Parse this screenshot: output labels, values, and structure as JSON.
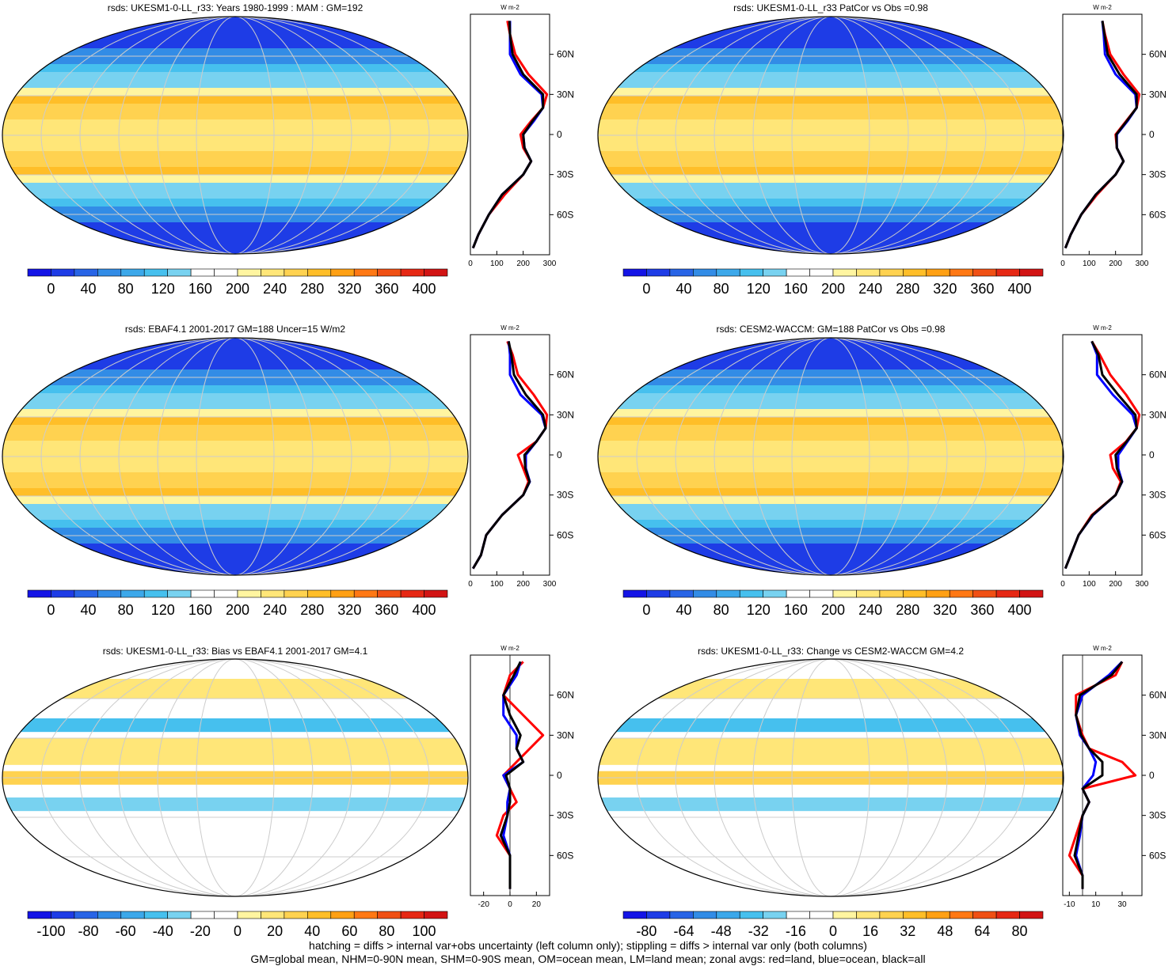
{
  "panels": [
    {
      "title": "rsds: UKESM1-0-LL_r33: Years 1980-1999 : MAM : GM=192",
      "kind": "abs",
      "cbar_labels": [
        "0",
        "40",
        "80",
        "120",
        "160",
        "200",
        "240",
        "280",
        "320",
        "360",
        "400"
      ],
      "zonal_xticks": [
        "0",
        "100",
        "200",
        "300"
      ],
      "zonal_unit": "W m-2",
      "lat_labels": [
        "60N",
        "30N",
        "0",
        "30S",
        "60S"
      ]
    },
    {
      "title": "rsds: UKESM1-0-LL_r33 PatCor vs Obs =0.98",
      "kind": "abs",
      "cbar_labels": [
        "0",
        "40",
        "80",
        "120",
        "160",
        "200",
        "240",
        "280",
        "320",
        "360",
        "400"
      ],
      "zonal_xticks": [
        "0",
        "100",
        "200",
        "300"
      ],
      "zonal_unit": "W m-2",
      "lat_labels": [
        "60N",
        "30N",
        "0",
        "30S",
        "60S"
      ]
    },
    {
      "title": "rsds: EBAF4.1 2001-2017 GM=188 Uncer=15 W/m2",
      "kind": "abs",
      "cbar_labels": [
        "0",
        "40",
        "80",
        "120",
        "160",
        "200",
        "240",
        "280",
        "320",
        "360",
        "400"
      ],
      "zonal_xticks": [
        "0",
        "100",
        "200",
        "300"
      ],
      "zonal_unit": "W m-2",
      "lat_labels": [
        "60N",
        "30N",
        "0",
        "30S",
        "60S"
      ]
    },
    {
      "title": "rsds: CESM2-WACCM: GM=188 PatCor vs Obs =0.98",
      "kind": "abs",
      "cbar_labels": [
        "0",
        "40",
        "80",
        "120",
        "160",
        "200",
        "240",
        "280",
        "320",
        "360",
        "400"
      ],
      "zonal_xticks": [
        "0",
        "100",
        "200",
        "300"
      ],
      "zonal_unit": "W m-2",
      "lat_labels": [
        "60N",
        "30N",
        "0",
        "30S",
        "60S"
      ]
    },
    {
      "title": "rsds: UKESM1-0-LL_r33: Bias vs EBAF4.1 2001-2017 GM=4.1",
      "kind": "diff",
      "cbar_labels": [
        "-100",
        "-80",
        "-60",
        "-40",
        "-20",
        "0",
        "20",
        "40",
        "60",
        "80",
        "100"
      ],
      "zonal_xticks": [
        "-20",
        "0",
        "20"
      ],
      "zonal_unit": "W m-2",
      "lat_labels": [
        "60N",
        "30N",
        "0",
        "30S",
        "60S"
      ]
    },
    {
      "title": "rsds: UKESM1-0-LL_r33: Change vs CESM2-WACCM GM=4.2",
      "kind": "diff",
      "cbar_labels": [
        "-80",
        "-64",
        "-48",
        "-32",
        "-16",
        "0",
        "16",
        "32",
        "48",
        "64",
        "80"
      ],
      "zonal_xticks": [
        "-10",
        "10",
        "30"
      ],
      "zonal_unit": "W m-2",
      "lat_labels": [
        "60N",
        "30N",
        "0",
        "30S",
        "60S"
      ]
    }
  ],
  "colors": {
    "abs_scale": [
      "#1414e6",
      "#1e3ce6",
      "#2864e6",
      "#328ce6",
      "#3ca8ea",
      "#46c0ee",
      "#78d2f0",
      "#ffffff",
      "#ffffff",
      "#fff5a0",
      "#ffe678",
      "#ffd250",
      "#ffbe28",
      "#ffa014",
      "#ff7814",
      "#f05014",
      "#e62814",
      "#d21414"
    ],
    "diff_scale": [
      "#1414e6",
      "#1e3ce6",
      "#2864e6",
      "#328ce6",
      "#3ca8ea",
      "#46c0ee",
      "#78d2f0",
      "#ffffff",
      "#ffffff",
      "#fff5a0",
      "#ffe678",
      "#ffd250",
      "#ffbe28",
      "#ffa014",
      "#ff7814",
      "#f05014",
      "#e62814",
      "#d21414"
    ],
    "land_line": "#ff0000",
    "ocean_line": "#0000ff",
    "all_line": "#000000"
  },
  "chart_data": {
    "type": "heatmap",
    "variable": "rsds",
    "lat_ticks": [
      "60N",
      "30N",
      "0",
      "30S",
      "60S"
    ],
    "zonal_mean_profiles": [
      {
        "panel": 1,
        "lat": [
          85,
          75,
          60,
          45,
          30,
          20,
          10,
          0,
          -10,
          -20,
          -30,
          -45,
          -60,
          -75,
          -85
        ],
        "land": [
          140,
          150,
          170,
          220,
          290,
          275,
          230,
          190,
          200,
          230,
          200,
          130,
          70,
          30,
          10
        ],
        "ocean": [
          150,
          150,
          150,
          190,
          270,
          275,
          240,
          200,
          205,
          230,
          200,
          120,
          70,
          30,
          10
        ],
        "all": [
          148,
          150,
          160,
          200,
          275,
          275,
          235,
          200,
          205,
          230,
          200,
          120,
          70,
          30,
          10
        ]
      },
      {
        "panel": 2,
        "lat": [
          85,
          75,
          60,
          45,
          30,
          20,
          10,
          0,
          -10,
          -20,
          -30,
          -45,
          -60,
          -75,
          -85
        ],
        "land": [
          150,
          160,
          180,
          230,
          290,
          280,
          240,
          200,
          205,
          230,
          200,
          130,
          70,
          30,
          10
        ],
        "ocean": [
          150,
          155,
          160,
          200,
          275,
          280,
          245,
          205,
          205,
          230,
          200,
          125,
          70,
          30,
          10
        ],
        "all": [
          150,
          158,
          170,
          215,
          280,
          280,
          242,
          203,
          205,
          230,
          200,
          125,
          70,
          30,
          10
        ]
      },
      {
        "panel": 3,
        "lat": [
          85,
          75,
          60,
          45,
          30,
          20,
          10,
          0,
          -10,
          -20,
          -30,
          -45,
          -60,
          -75,
          -85
        ],
        "land": [
          140,
          160,
          180,
          240,
          290,
          285,
          250,
          180,
          200,
          220,
          200,
          120,
          60,
          40,
          10
        ],
        "ocean": [
          145,
          150,
          150,
          190,
          270,
          285,
          250,
          210,
          210,
          225,
          200,
          120,
          60,
          40,
          10
        ],
        "all": [
          145,
          155,
          165,
          210,
          275,
          285,
          250,
          205,
          208,
          224,
          200,
          120,
          60,
          40,
          10
        ]
      },
      {
        "panel": 4,
        "lat": [
          85,
          75,
          60,
          45,
          30,
          20,
          10,
          0,
          -10,
          -20,
          -30,
          -45,
          -60,
          -75,
          -85
        ],
        "land": [
          110,
          140,
          180,
          240,
          290,
          280,
          240,
          180,
          190,
          220,
          200,
          110,
          60,
          30,
          10
        ],
        "ocean": [
          110,
          130,
          130,
          190,
          265,
          280,
          245,
          210,
          210,
          225,
          200,
          115,
          60,
          30,
          10
        ],
        "all": [
          110,
          135,
          150,
          210,
          275,
          280,
          242,
          200,
          205,
          224,
          200,
          113,
          60,
          30,
          10
        ]
      },
      {
        "panel": 5,
        "lat": [
          85,
          75,
          60,
          45,
          30,
          20,
          10,
          0,
          -10,
          -20,
          -30,
          -45,
          -60,
          -75,
          -85
        ],
        "land": [
          10,
          0,
          -5,
          10,
          25,
          15,
          5,
          -5,
          0,
          5,
          -5,
          -10,
          0,
          0,
          0
        ],
        "ocean": [
          8,
          5,
          -5,
          -5,
          5,
          5,
          10,
          -5,
          0,
          -2,
          -2,
          -5,
          0,
          0,
          0
        ],
        "all": [
          8,
          3,
          -5,
          0,
          8,
          5,
          10,
          -3,
          0,
          0,
          -2,
          -7,
          0,
          0,
          0
        ]
      },
      {
        "panel": 6,
        "lat": [
          85,
          75,
          60,
          45,
          30,
          20,
          10,
          0,
          -10,
          -20,
          -30,
          -45,
          -60,
          -75,
          -85
        ],
        "land": [
          30,
          25,
          -5,
          -5,
          0,
          5,
          30,
          40,
          0,
          5,
          0,
          -5,
          -10,
          0,
          0
        ],
        "ocean": [
          30,
          20,
          0,
          -5,
          -2,
          5,
          10,
          8,
          0,
          5,
          0,
          -2,
          -5,
          0,
          0
        ],
        "all": [
          30,
          22,
          -2,
          -5,
          -1,
          5,
          15,
          15,
          0,
          5,
          0,
          -3,
          -6,
          0,
          0
        ]
      }
    ]
  },
  "footer": {
    "line1": "hatching = diffs > internal var+obs uncertainty (left column only); stippling = diffs > internal var only (both columns)",
    "line2": "GM=global mean, NHM=0-90N mean, SHM=0-90S mean, OM=ocean mean, LM=land mean; zonal avgs: red=land, blue=ocean, black=all"
  }
}
